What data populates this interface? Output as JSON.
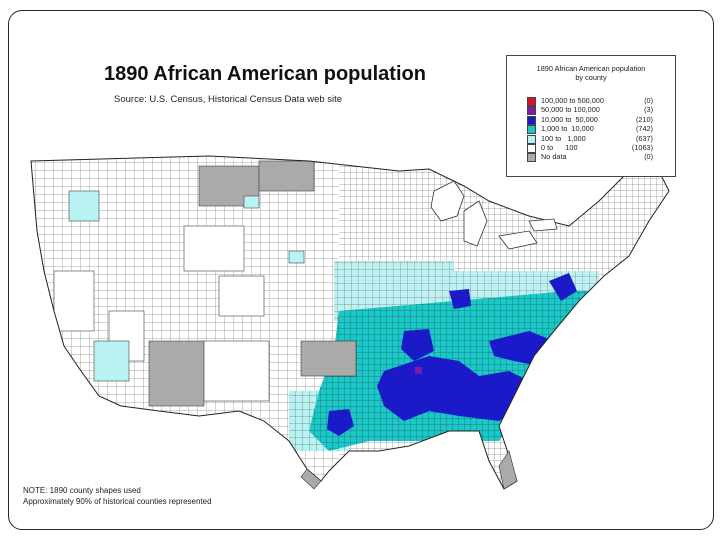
{
  "title": "1890 African American population",
  "source": "Source:  U.S. Census, Historical Census Data web site",
  "note": {
    "line1": "NOTE: 1890 county shapes used",
    "line2": "Approximately 90% of historical counties represented"
  },
  "legend": {
    "title_line1": "1890 African American population",
    "title_line2": "by county",
    "items": [
      {
        "range": "100,000 to 500,000",
        "count": "(0)",
        "color": "#e0102a"
      },
      {
        "range": "50,000 to 100,000",
        "count": "(3)",
        "color": "#7b1fa2"
      },
      {
        "range": "10,000 to  50,000",
        "count": "(210)",
        "color": "#1a1ac8"
      },
      {
        "range": "1,000 to  10,000",
        "count": "(742)",
        "color": "#19c8c8"
      },
      {
        "range": "100 to   1,000",
        "count": "(637)",
        "color": "#b8f2f2"
      },
      {
        "range": "0 to      100",
        "count": "(1063)",
        "color": "#ffffff"
      },
      {
        "range": "No data",
        "count": "(0)",
        "color": "#aaaaaa"
      }
    ]
  },
  "colors": {
    "border": "#333333",
    "land": "#ffffff",
    "nodata": "#aaaaaa",
    "light": "#b8f2f2",
    "mid": "#19c8c8",
    "high": "#1a1ac8",
    "veryhigh": "#7b1fa2"
  }
}
